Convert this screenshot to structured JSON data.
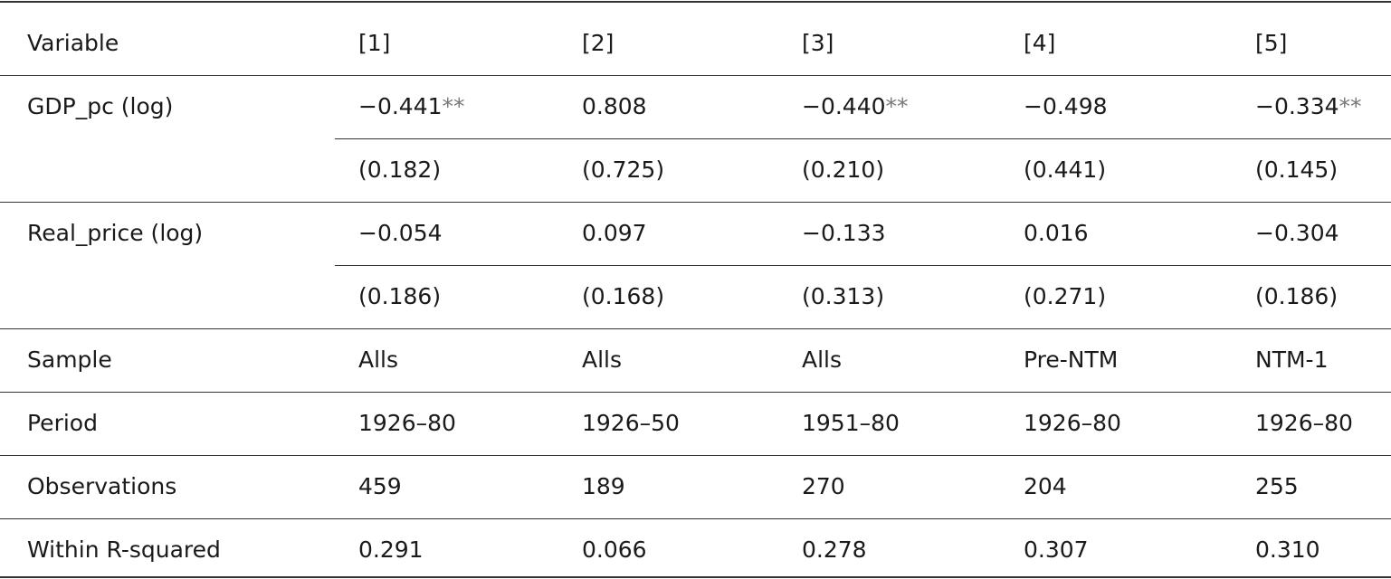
{
  "table": {
    "header": [
      "Variable",
      "[1]",
      "[2]",
      "[3]",
      "[4]",
      "[5]"
    ],
    "coefficients": [
      {
        "label": "GDP_pc (log)",
        "estimates": [
          {
            "value": "−0.441",
            "stars": "**"
          },
          "0.808",
          {
            "value": "−0.440",
            "stars": "**"
          },
          "−0.498",
          {
            "value": "−0.334",
            "stars": "**"
          }
        ],
        "std_errors": [
          "(0.182)",
          "(0.725)",
          "(0.210)",
          "(0.441)",
          "(0.145)"
        ]
      },
      {
        "label": "Real_price (log)",
        "estimates": [
          "−0.054",
          "0.097",
          "−0.133",
          "0.016",
          "−0.304"
        ],
        "std_errors": [
          "(0.186)",
          "(0.168)",
          "(0.313)",
          "(0.271)",
          "(0.186)"
        ]
      }
    ],
    "stats": [
      {
        "label": "Sample",
        "values": [
          "Alls",
          "Alls",
          "Alls",
          "Pre-NTM",
          "NTM-1"
        ]
      },
      {
        "label": "Period",
        "values": [
          "1926–80",
          "1926–50",
          "1951–80",
          "1926–80",
          "1926–80"
        ]
      },
      {
        "label": "Observations",
        "values": [
          "459",
          "189",
          "270",
          "204",
          "255"
        ]
      },
      {
        "label": "Within R-squared",
        "values": [
          "0.291",
          "0.066",
          "0.278",
          "0.307",
          "0.310"
        ]
      }
    ]
  }
}
